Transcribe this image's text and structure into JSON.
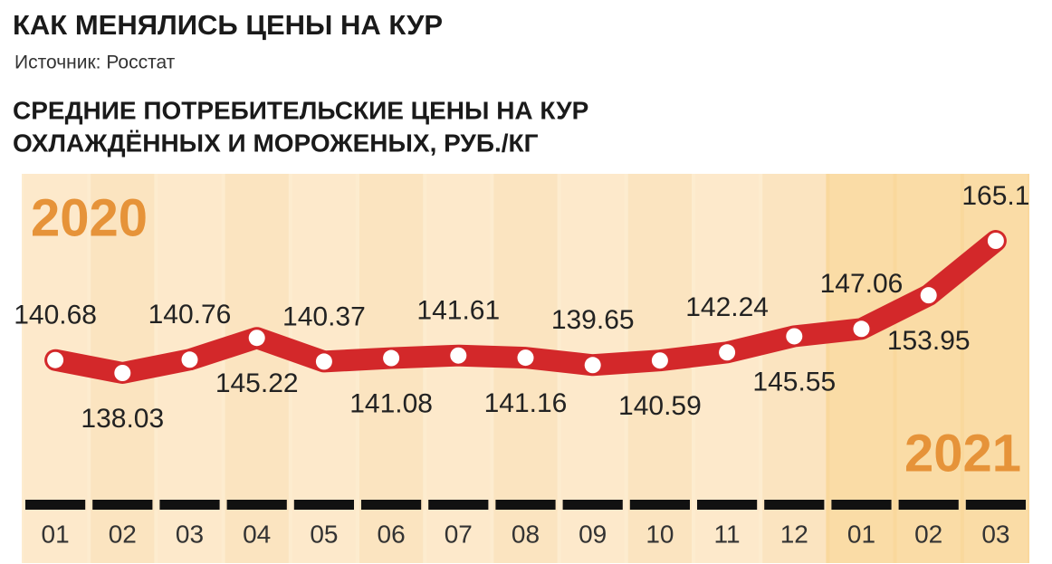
{
  "chart_data": {
    "type": "line",
    "title": "КАК МЕНЯЛИСЬ ЦЕНЫ НА КУР",
    "source": "Источник: Росстат",
    "subtitle": [
      "СРЕДНИЕ ПОТРЕБИТЕЛЬСКИЕ ЦЕНЫ НА КУР",
      "ОХЛАЖДЁННЫХ И МОРОЖЕНЫХ, РУБ./КГ"
    ],
    "annotations": [
      "2020",
      "2021"
    ],
    "categories": [
      "01",
      "02",
      "03",
      "04",
      "05",
      "06",
      "07",
      "08",
      "09",
      "10",
      "11",
      "12",
      "01",
      "02",
      "03"
    ],
    "series": [
      {
        "color": "#d3282a",
        "values": [
          140.68,
          138.03,
          140.76,
          145.22,
          140.37,
          141.08,
          141.61,
          141.16,
          139.65,
          140.59,
          142.24,
          145.55,
          147.06,
          153.95,
          165.1
        ]
      }
    ]
  }
}
